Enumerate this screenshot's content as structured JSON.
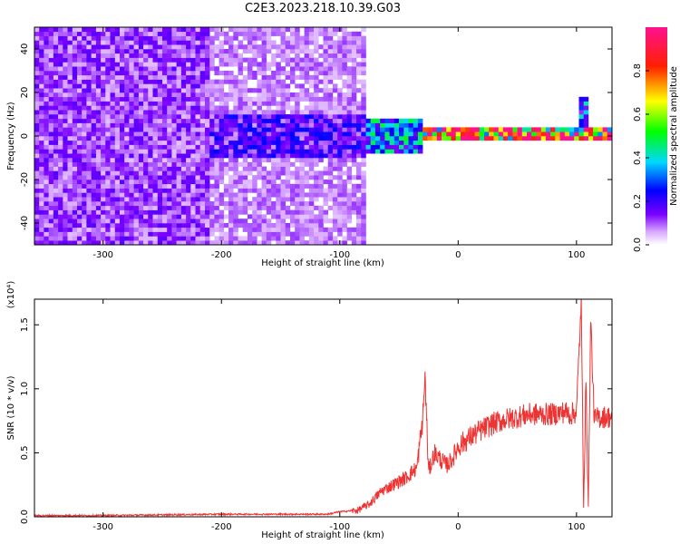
{
  "figure_title": "C2E3.2023.218.10.39.G03",
  "colors": {
    "line": "#ee3333",
    "axis": "#000000",
    "background": "#ffffff"
  },
  "chart_data": [
    {
      "type": "heatmap",
      "title": "C2E3.2023.218.10.39.G03",
      "xlabel": "Height of straight line (km)",
      "ylabel": "Frequency (Hz)",
      "xlim": [
        -358,
        130
      ],
      "ylim": [
        -50,
        50
      ],
      "x_ticks": [
        -300,
        -200,
        -100,
        0,
        100
      ],
      "y_ticks": [
        -40,
        -20,
        0,
        20,
        40
      ],
      "x_tick_labels": [
        "-300",
        "-200",
        "-100",
        "0",
        "100"
      ],
      "y_tick_labels": [
        "-40",
        "-20",
        "0",
        "20",
        "40"
      ],
      "colorbar": {
        "label": "Normalized spectral amplitude",
        "range": [
          0,
          1
        ],
        "ticks": [
          0.0,
          0.2,
          0.4,
          0.6,
          0.8
        ],
        "tick_labels": [
          "0.0",
          "0.2",
          "0.4",
          "0.6",
          "0.8"
        ],
        "colormap": "rainbow (white-violet-blue-cyan-green-yellow-red-magenta)"
      },
      "regions": [
        {
          "x_range": [
            -358,
            -210
          ],
          "freq_range": [
            -50,
            50
          ],
          "amplitude": 0.12,
          "note": "broadband noise"
        },
        {
          "x_range": [
            -210,
            -80
          ],
          "freq_range": [
            -50,
            50
          ],
          "amplitude": 0.08,
          "note": "broadband noise, fading"
        },
        {
          "x_range": [
            -210,
            -80
          ],
          "freq_range": [
            -10,
            10
          ],
          "amplitude": 0.18,
          "note": "central enhancement"
        },
        {
          "x_range": [
            -80,
            -30
          ],
          "freq_range": [
            -8,
            8
          ],
          "amplitude": 0.35,
          "note": "narrowing band"
        },
        {
          "x_range": [
            -30,
            130
          ],
          "freq_range": [
            -2,
            3
          ],
          "amplitude": 0.85,
          "note": "narrow band near 0 Hz"
        },
        {
          "x_range": [
            100,
            108
          ],
          "freq_range": [
            0,
            18
          ],
          "amplitude": 0.3,
          "note": "spike feature"
        }
      ]
    },
    {
      "type": "line",
      "xlabel": "Height of straight line (km)",
      "ylabel": "SNR (10 * v/v)",
      "y_scale_label": "(x10⁴)",
      "xlim": [
        -358,
        130
      ],
      "ylim": [
        0,
        1.7
      ],
      "x_ticks": [
        -300,
        -200,
        -100,
        0,
        100
      ],
      "y_ticks": [
        0.0,
        0.5,
        1.0,
        1.5
      ],
      "x_tick_labels": [
        "-300",
        "-200",
        "-100",
        "0",
        "100"
      ],
      "y_tick_labels": [
        "0.0",
        "0.5",
        "1.0",
        "1.5"
      ],
      "series": [
        {
          "color": "#ee3333",
          "x": [
            -358,
            -300,
            -250,
            -200,
            -150,
            -110,
            -100,
            -85,
            -75,
            -65,
            -55,
            -45,
            -35,
            -30,
            -28,
            -25,
            -20,
            -15,
            -10,
            -5,
            0,
            10,
            20,
            30,
            40,
            50,
            60,
            70,
            80,
            90,
            95,
            100,
            104,
            106,
            108,
            110,
            112,
            115,
            120,
            130
          ],
          "y": [
            0.01,
            0.01,
            0.015,
            0.02,
            0.02,
            0.02,
            0.04,
            0.05,
            0.1,
            0.2,
            0.25,
            0.3,
            0.38,
            0.75,
            1.1,
            0.35,
            0.5,
            0.45,
            0.4,
            0.45,
            0.55,
            0.62,
            0.68,
            0.73,
            0.76,
            0.78,
            0.8,
            0.8,
            0.8,
            0.82,
            0.8,
            0.82,
            1.68,
            0.1,
            1.05,
            0.08,
            1.55,
            0.76,
            0.78,
            0.78
          ]
        }
      ]
    }
  ]
}
